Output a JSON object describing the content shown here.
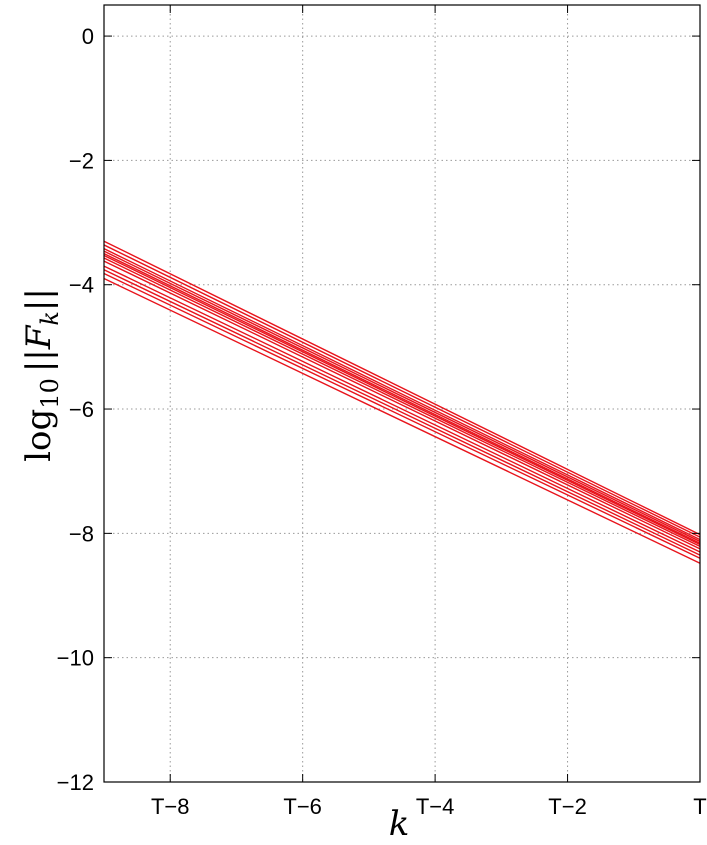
{
  "chart_data": {
    "type": "line",
    "xlabel": "k",
    "ylabel_text": "log",
    "ylabel_subscript": "10",
    "ylabel_suffix": "||F",
    "ylabel_suffix_subscript": "k",
    "ylabel_end": "||",
    "xlim": [
      -9,
      0
    ],
    "ylim": [
      -12,
      0.5
    ],
    "grid": true,
    "line_color": "#e8141c",
    "x_ticks": [
      {
        "value": -8,
        "label": "T−8"
      },
      {
        "value": -6,
        "label": "T−6"
      },
      {
        "value": -4,
        "label": "T−4"
      },
      {
        "value": -2,
        "label": "T−2"
      },
      {
        "value": 0,
        "label": "T"
      }
    ],
    "y_ticks": [
      {
        "value": 0,
        "label": "0"
      },
      {
        "value": -2,
        "label": "−2"
      },
      {
        "value": -4,
        "label": "−4"
      },
      {
        "value": -6,
        "label": "−6"
      },
      {
        "value": -8,
        "label": "−8"
      },
      {
        "value": -10,
        "label": "−10"
      },
      {
        "value": -12,
        "label": "−12"
      }
    ],
    "x": [
      -9,
      0
    ],
    "series": [
      {
        "values": [
          -3.3,
          -8.02
        ]
      },
      {
        "values": [
          -3.36,
          -8.06
        ]
      },
      {
        "values": [
          -3.42,
          -8.1
        ]
      },
      {
        "values": [
          -3.46,
          -8.13
        ]
      },
      {
        "values": [
          -3.5,
          -8.16
        ]
      },
      {
        "values": [
          -3.53,
          -8.18
        ]
      },
      {
        "values": [
          -3.57,
          -8.21
        ]
      },
      {
        "values": [
          -3.62,
          -8.25
        ]
      },
      {
        "values": [
          -3.7,
          -8.3
        ]
      },
      {
        "values": [
          -3.76,
          -8.35
        ]
      },
      {
        "values": [
          -3.82,
          -8.4
        ]
      },
      {
        "values": [
          -3.9,
          -8.48
        ]
      }
    ]
  }
}
